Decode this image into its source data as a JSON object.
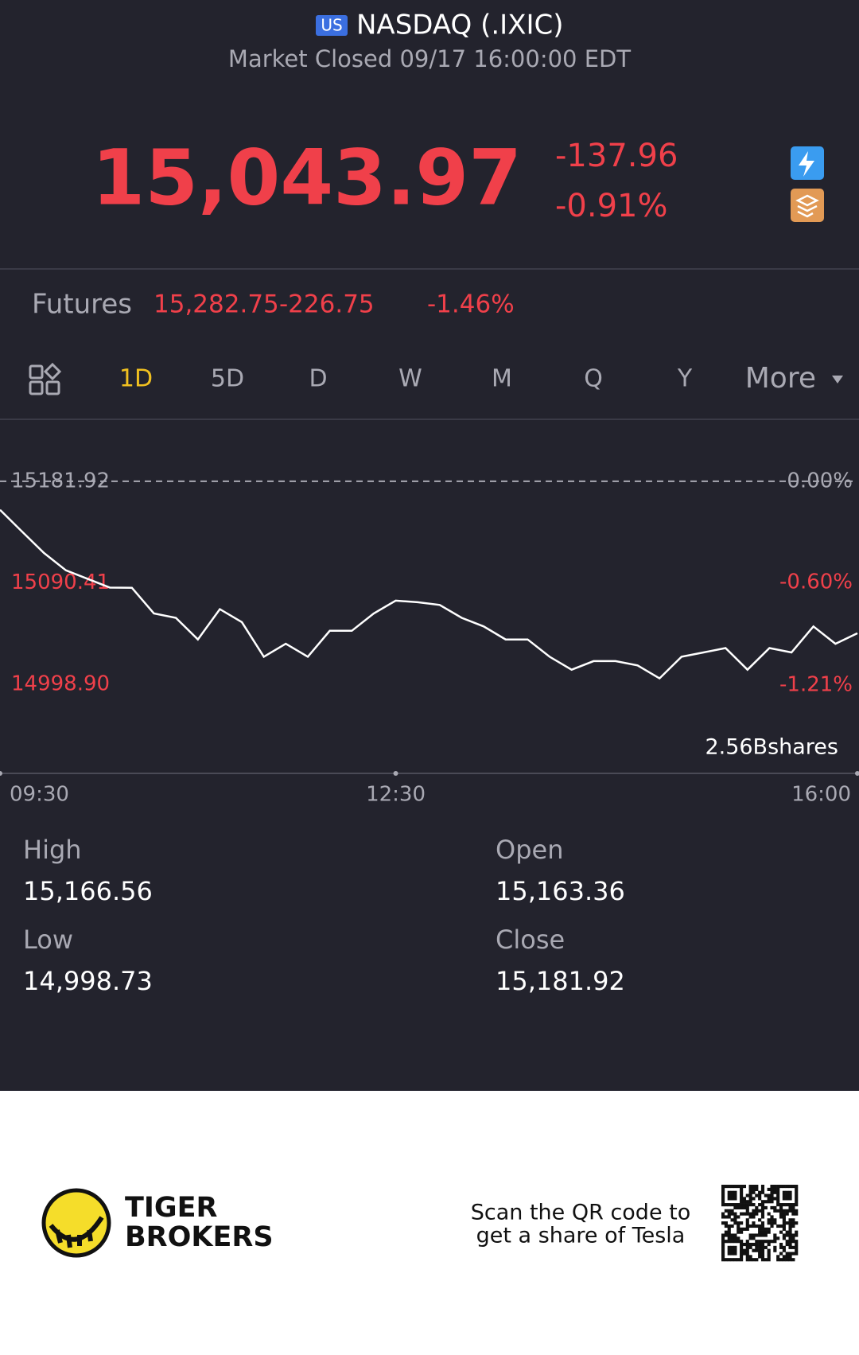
{
  "header": {
    "badge": "US",
    "title": "NASDAQ (.IXIC)",
    "status": "Market Closed 09/17 16:00:00 EDT"
  },
  "quote": {
    "price": "15,043.97",
    "change": "-137.96",
    "change_pct": "-0.91%"
  },
  "futures": {
    "label": "Futures",
    "price": "15,282.75",
    "change": "-226.75",
    "change_pct": "-1.46%"
  },
  "tabs": [
    "1D",
    "5D",
    "D",
    "W",
    "M",
    "Q",
    "Y",
    "More"
  ],
  "chart_data": {
    "type": "line",
    "x": [
      "09:30",
      "09:40",
      "09:50",
      "10:00",
      "10:10",
      "10:20",
      "10:30",
      "10:40",
      "10:50",
      "11:00",
      "11:10",
      "11:20",
      "11:30",
      "11:40",
      "11:50",
      "12:00",
      "12:10",
      "12:20",
      "12:30",
      "12:40",
      "12:50",
      "13:00",
      "13:10",
      "13:20",
      "13:30",
      "13:40",
      "13:50",
      "14:00",
      "14:10",
      "14:20",
      "14:30",
      "14:40",
      "14:50",
      "15:00",
      "15:10",
      "15:20",
      "15:30",
      "15:40",
      "15:50",
      "16:00"
    ],
    "series": [
      {
        "color": "#ffffff",
        "values": [
          15156.2,
          15136.7,
          15117.3,
          15101.7,
          15093.9,
          15086.1,
          15086.0,
          15062.8,
          15058.9,
          15039.4,
          15066.7,
          15055.0,
          15023.8,
          15035.5,
          15023.8,
          15047.2,
          15047.2,
          15062.8,
          15074.4,
          15072.9,
          15070.5,
          15058.9,
          15051.1,
          15039.4,
          15039.4,
          15023.8,
          15012.1,
          15019.9,
          15019.9,
          15016.0,
          15004.3,
          15023.8,
          15027.7,
          15031.6,
          15012.1,
          15031.6,
          15027.7,
          15051.1,
          15035.5,
          15045.0
        ]
      }
    ],
    "xticks": [
      "09:30",
      "12:30",
      "16:00"
    ],
    "ylim": [
      14918.7,
      15226.3
    ],
    "yticks": [
      15181.92,
      15090.41,
      {
        "value": 14998.9,
        "label": "14998.90"
      }
    ],
    "y2lim": [
      -1.734,
      0.292
    ],
    "y2ticks": [
      {
        "value": 0,
        "label": "0.00%"
      },
      {
        "value": -0.6,
        "label": "-0.60%"
      },
      {
        "value": -1.21,
        "label": "-1.21%"
      }
    ],
    "volume_label": "2.56Bshares"
  },
  "stats": [
    {
      "label": "High",
      "value": "15,166.56"
    },
    {
      "label": "Open",
      "value": "15,163.36"
    },
    {
      "label": "Low",
      "value": "14,998.73"
    },
    {
      "label": "Close",
      "value": "15,181.92"
    }
  ],
  "footer": {
    "brand_line1": "TIGER",
    "brand_line2": "BROKERS",
    "cta_line1": "Scan the QR code to",
    "cta_line2": "get a share of Tesla"
  }
}
